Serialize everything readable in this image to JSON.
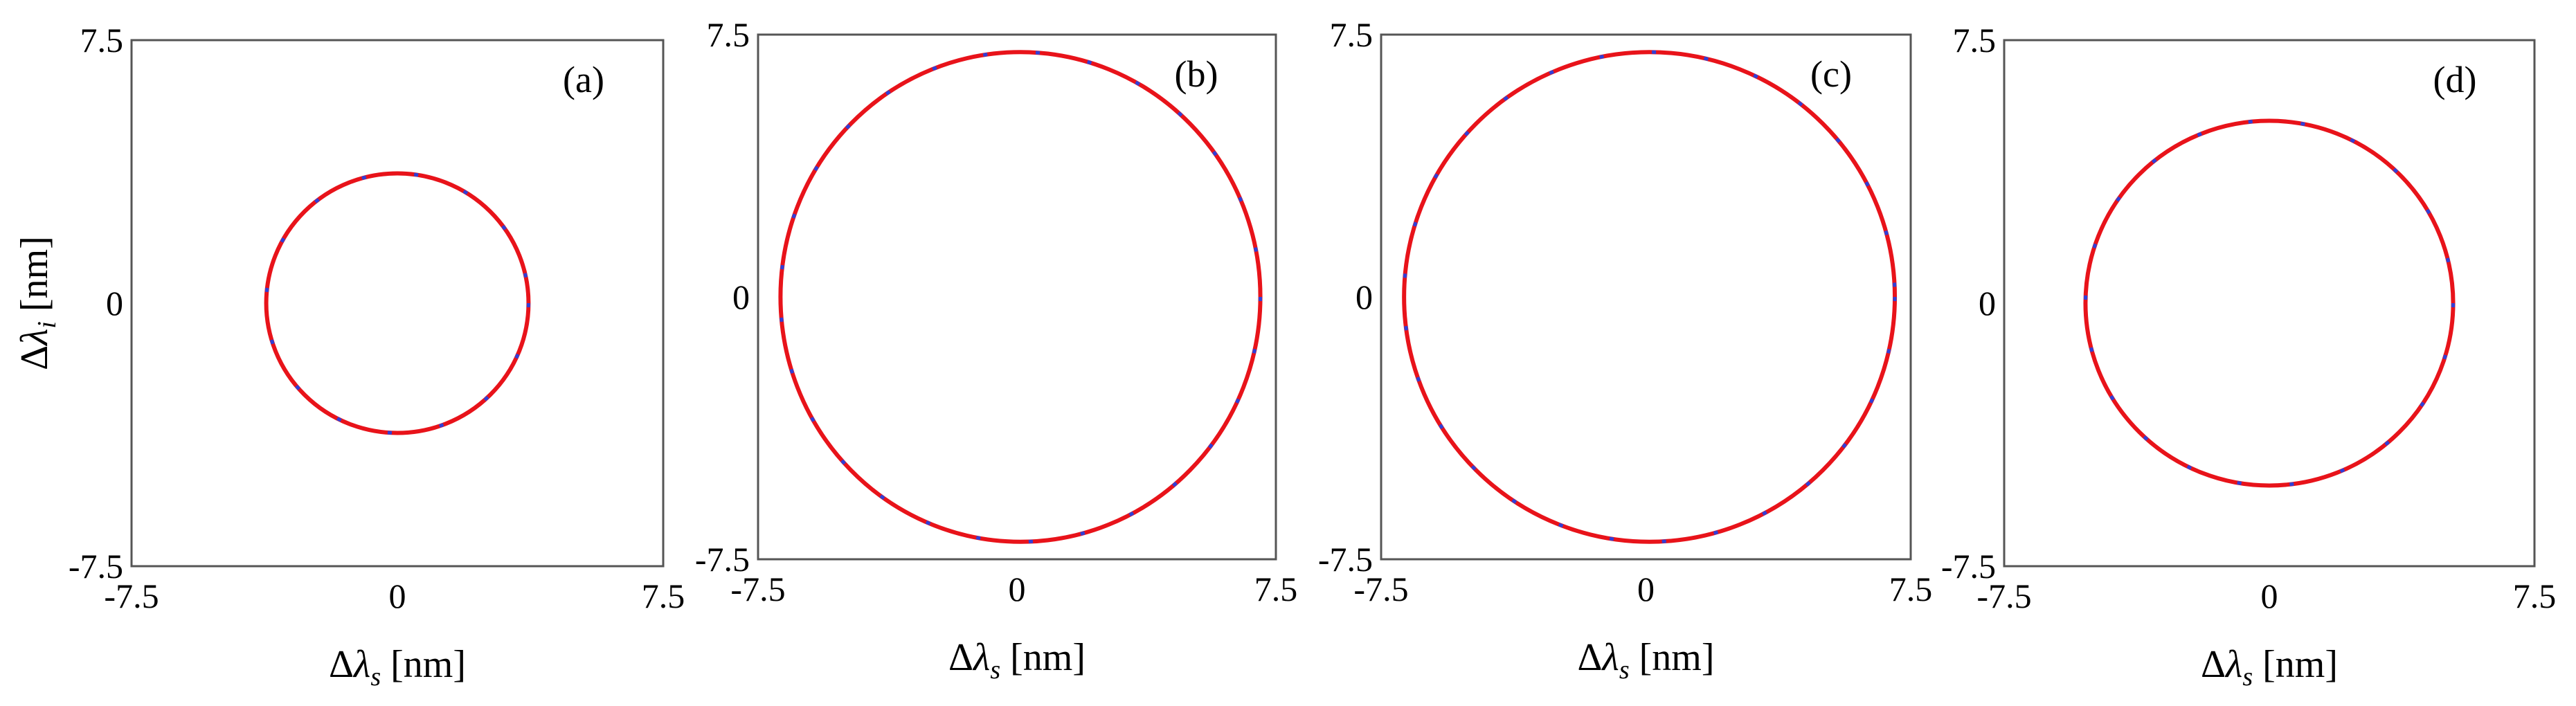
{
  "chart_data": [
    {
      "type": "line",
      "panel_label": "(a)",
      "xlabel": "Δλ_s [nm]",
      "ylabel": "Δλ_i [nm]",
      "xlim": [
        -7.5,
        7.5
      ],
      "ylim": [
        -7.5,
        7.5
      ],
      "xticks": [
        "-7.5",
        "0",
        "7.5"
      ],
      "yticks": [
        "7.5",
        "0",
        "-7.5"
      ],
      "series": [
        {
          "color": "#e8131a",
          "style": "solid",
          "shape": "circle",
          "center": [
            0,
            0
          ],
          "radius_x": 3.7,
          "radius_y": 3.7
        },
        {
          "color": "#2f3fd8",
          "style": "dashed",
          "shape": "circle",
          "center": [
            0,
            0
          ],
          "radius_x": 3.7,
          "radius_y": 3.7
        }
      ]
    },
    {
      "type": "line",
      "panel_label": "(b)",
      "xlabel": "Δλ_s [nm]",
      "ylabel": "",
      "xlim": [
        -7.5,
        7.5
      ],
      "ylim": [
        -7.5,
        7.5
      ],
      "xticks": [
        "-7.5",
        "0",
        "7.5"
      ],
      "yticks": [
        "7.5",
        "0",
        "-7.5"
      ],
      "series": [
        {
          "color": "#e8131a",
          "style": "solid",
          "shape": "circle",
          "center": [
            0.1,
            0
          ],
          "radius_x": 6.95,
          "radius_y": 7.0
        },
        {
          "color": "#2f3fd8",
          "style": "dashed",
          "shape": "circle",
          "center": [
            0.1,
            0
          ],
          "radius_x": 6.95,
          "radius_y": 7.0
        }
      ]
    },
    {
      "type": "line",
      "panel_label": "(c)",
      "xlabel": "Δλ_s [nm]",
      "ylabel": "",
      "xlim": [
        -7.5,
        7.5
      ],
      "ylim": [
        -7.5,
        7.5
      ],
      "xticks": [
        "-7.5",
        "0",
        "7.5"
      ],
      "yticks": [
        "7.5",
        "0",
        "-7.5"
      ],
      "series": [
        {
          "color": "#e8131a",
          "style": "solid",
          "shape": "circle",
          "center": [
            0.1,
            0
          ],
          "radius_x": 6.95,
          "radius_y": 7.0
        },
        {
          "color": "#2f3fd8",
          "style": "dashed",
          "shape": "circle",
          "center": [
            0.1,
            0
          ],
          "radius_x": 6.95,
          "radius_y": 7.0
        }
      ]
    },
    {
      "type": "line",
      "panel_label": "(d)",
      "xlabel": "Δλ_s [nm]",
      "ylabel": "",
      "xlim": [
        -7.5,
        7.5
      ],
      "ylim": [
        -7.5,
        7.5
      ],
      "xticks": [
        "-7.5",
        "0",
        "7.5"
      ],
      "yticks": [
        "7.5",
        "0",
        "-7.5"
      ],
      "series": [
        {
          "color": "#e8131a",
          "style": "solid",
          "shape": "circle",
          "center": [
            0,
            0
          ],
          "radius_x": 5.2,
          "radius_y": 5.2
        },
        {
          "color": "#2f3fd8",
          "style": "dashed",
          "shape": "circle",
          "center": [
            0,
            0
          ],
          "radius_x": 5.2,
          "radius_y": 5.2
        }
      ]
    }
  ]
}
